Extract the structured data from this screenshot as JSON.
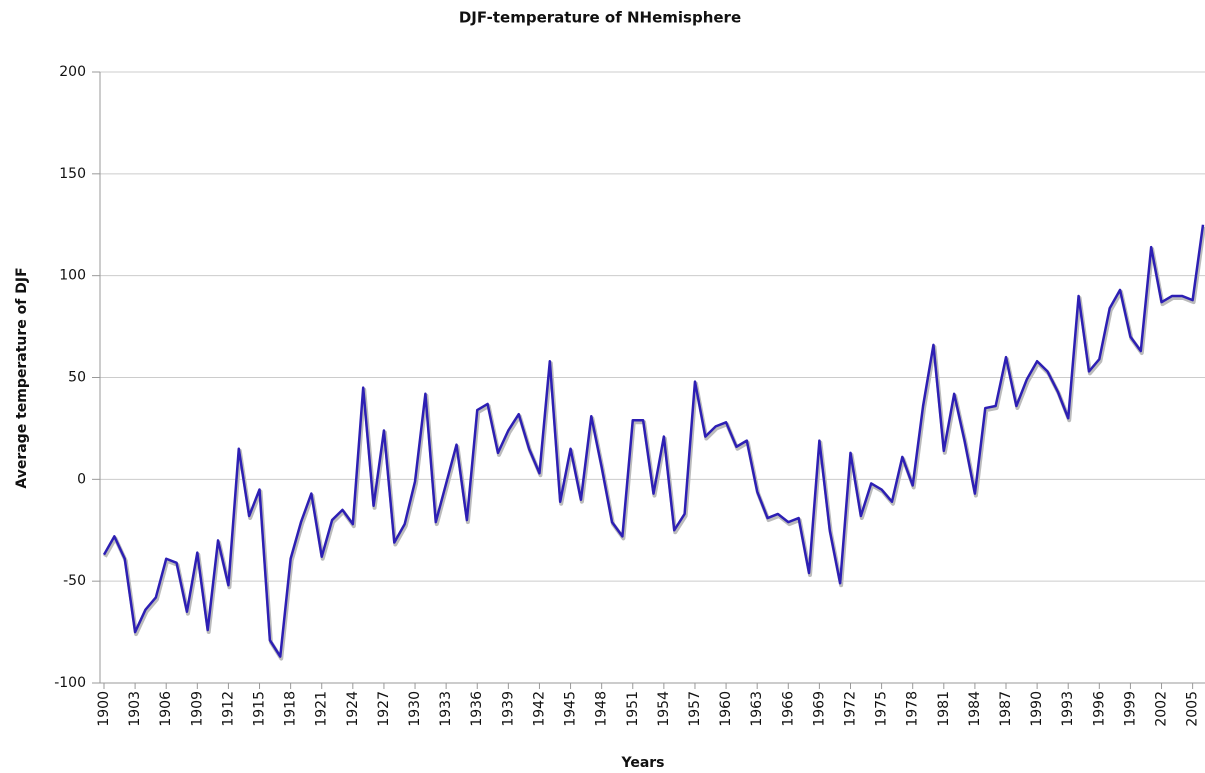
{
  "chart_data": {
    "type": "line",
    "title": "DJF-temperature of NHemisphere",
    "x_label": "Years",
    "y_label": "Average temperature of DJF",
    "x": [
      1900,
      1901,
      1902,
      1903,
      1904,
      1905,
      1906,
      1907,
      1908,
      1909,
      1910,
      1911,
      1912,
      1913,
      1914,
      1915,
      1916,
      1917,
      1918,
      1919,
      1920,
      1921,
      1922,
      1923,
      1924,
      1925,
      1926,
      1927,
      1928,
      1929,
      1930,
      1931,
      1932,
      1933,
      1934,
      1935,
      1936,
      1937,
      1938,
      1939,
      1940,
      1941,
      1942,
      1943,
      1944,
      1945,
      1946,
      1947,
      1948,
      1949,
      1950,
      1951,
      1952,
      1953,
      1954,
      1955,
      1956,
      1957,
      1958,
      1959,
      1960,
      1961,
      1962,
      1963,
      1964,
      1965,
      1966,
      1967,
      1968,
      1969,
      1970,
      1971,
      1972,
      1973,
      1974,
      1975,
      1976,
      1977,
      1978,
      1979,
      1980,
      1981,
      1982,
      1983,
      1984,
      1985,
      1986,
      1987,
      1988,
      1989,
      1990,
      1991,
      1992,
      1993,
      1994,
      1995,
      1996,
      1997,
      1998,
      1999,
      2000,
      2001,
      2002,
      2003,
      2004,
      2005,
      2006
    ],
    "series": [
      {
        "color": "#2d1fb4",
        "values": [
          -37,
          -28,
          -39,
          -75,
          -64,
          -58,
          -39,
          -41,
          -65,
          -36,
          -74,
          -30,
          -52,
          15,
          -18,
          -5,
          -79,
          -87,
          -39,
          -21,
          -7,
          -38,
          -20,
          -15,
          -22,
          45,
          -13,
          24,
          -31,
          -22,
          -1,
          42,
          -21,
          -2,
          17,
          -20,
          34,
          37,
          13,
          24,
          32,
          15,
          3,
          58,
          -11,
          15,
          -10,
          31,
          6,
          -21,
          -28,
          29,
          29,
          -7,
          21,
          -25,
          -17,
          48,
          21,
          26,
          28,
          16,
          19,
          -6,
          -19,
          -17,
          -21,
          -19,
          -46,
          19,
          -25,
          -51,
          13,
          -18,
          -2,
          -5,
          -11,
          11,
          -3,
          36,
          66,
          14,
          42,
          19,
          -7,
          35,
          36,
          60,
          36,
          49,
          58,
          53,
          43,
          30,
          90,
          53,
          59,
          84,
          93,
          70,
          63,
          114,
          87,
          90,
          90,
          88,
          125
        ]
      }
    ],
    "xlim": [
      1900,
      2006
    ],
    "xticks": [
      1900,
      1903,
      1906,
      1909,
      1912,
      1915,
      1918,
      1921,
      1924,
      1927,
      1930,
      1933,
      1936,
      1939,
      1942,
      1945,
      1948,
      1951,
      1954,
      1957,
      1960,
      1963,
      1966,
      1969,
      1972,
      1975,
      1978,
      1981,
      1984,
      1987,
      1990,
      1993,
      1996,
      1999,
      2002,
      2005
    ],
    "ylim": [
      -100,
      200
    ],
    "yticks": [
      -100,
      -50,
      0,
      50,
      100,
      150,
      200
    ],
    "grid": true
  }
}
